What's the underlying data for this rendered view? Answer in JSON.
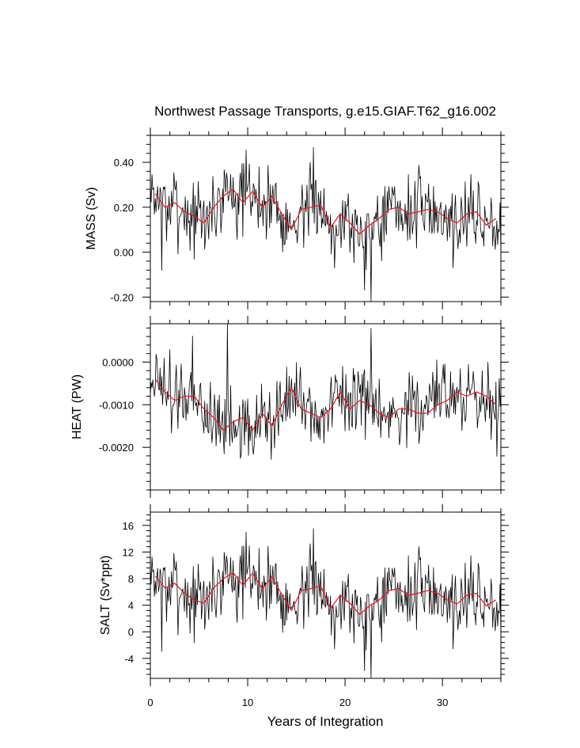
{
  "title": "Northwest Passage Transports, g.e15.GIAF.T62_g16.002",
  "xlabel": "Years of Integration",
  "colors": {
    "monthly": "#000000",
    "annual": "#e8141c",
    "frame": "#000000"
  },
  "chart_data": {
    "type": "line",
    "x_axis": {
      "label": "Years of Integration",
      "range": [
        0,
        36
      ],
      "ticks": [
        0,
        10,
        20,
        30
      ],
      "tick_labels": [
        "0",
        "10",
        "20",
        "30"
      ]
    },
    "panels": [
      {
        "id": "mass",
        "ylabel": "MASS (Sv)",
        "ylim": [
          -0.22,
          0.52
        ],
        "ticks": [
          -0.2,
          0.0,
          0.2,
          0.4
        ],
        "tick_labels": [
          "-0.20",
          "0.00",
          "0.20",
          "0.40"
        ],
        "series": [
          {
            "name": "monthly",
            "color": "#000000",
            "noise_seed": 7
          },
          {
            "name": "annual",
            "color": "#e8141c",
            "x": [
              0.5,
              1.5,
              2.5,
              3.5,
              4.5,
              5.5,
              6.5,
              7.5,
              8.5,
              9.5,
              10.5,
              11.5,
              12.5,
              13.5,
              14.5,
              15.5,
              16.5,
              17.5,
              18.5,
              19.5,
              20.5,
              21.5,
              22.5,
              23.5,
              24.5,
              25.5,
              26.5,
              27.5,
              28.5,
              29.5,
              30.5,
              31.5,
              32.5,
              33.5,
              34.5,
              35.5
            ],
            "y": [
              0.26,
              0.2,
              0.22,
              0.18,
              0.16,
              0.13,
              0.2,
              0.25,
              0.28,
              0.22,
              0.27,
              0.2,
              0.25,
              0.17,
              0.1,
              0.19,
              0.2,
              0.21,
              0.11,
              0.17,
              0.13,
              0.08,
              0.12,
              0.15,
              0.19,
              0.2,
              0.17,
              0.18,
              0.19,
              0.18,
              0.15,
              0.13,
              0.17,
              0.18,
              0.12,
              0.15
            ]
          }
        ]
      },
      {
        "id": "heat",
        "ylabel": "HEAT (PW)",
        "ylim": [
          -0.003,
          0.0009
        ],
        "ticks": [
          -0.002,
          -0.001,
          0.0
        ],
        "tick_labels": [
          "-0.0020",
          "-0.0010",
          "0.0000"
        ],
        "series": [
          {
            "name": "monthly",
            "color": "#000000",
            "noise_seed": 19
          },
          {
            "name": "annual",
            "color": "#e8141c",
            "x": [
              0.5,
              1.5,
              2.5,
              3.5,
              4.5,
              5.5,
              6.5,
              7.5,
              8.5,
              9.5,
              10.5,
              11.5,
              12.5,
              13.5,
              14.5,
              15.5,
              16.5,
              17.5,
              18.5,
              19.5,
              20.5,
              21.5,
              22.5,
              23.5,
              24.5,
              25.5,
              26.5,
              27.5,
              28.5,
              29.5,
              30.5,
              31.5,
              32.5,
              33.5,
              34.5,
              35.5
            ],
            "y": [
              -0.0004,
              -0.0007,
              -0.0009,
              -0.0008,
              -0.0008,
              -0.0011,
              -0.0013,
              -0.0016,
              -0.0014,
              -0.0013,
              -0.0016,
              -0.0012,
              -0.0015,
              -0.001,
              -0.0006,
              -0.0011,
              -0.0012,
              -0.0013,
              -0.0011,
              -0.0007,
              -0.0011,
              -0.0009,
              -0.001,
              -0.0012,
              -0.0013,
              -0.0011,
              -0.0011,
              -0.0012,
              -0.0012,
              -0.001,
              -0.0009,
              -0.0007,
              -0.0008,
              -0.0007,
              -0.0008,
              -0.001
            ]
          }
        ]
      },
      {
        "id": "salt",
        "ylabel": "SALT (Sv*ppt)",
        "ylim": [
          -7,
          18
        ],
        "ticks": [
          -4,
          0,
          4,
          8,
          12,
          16
        ],
        "tick_labels": [
          "-4",
          "0",
          "4",
          "8",
          "12",
          "16"
        ],
        "series": [
          {
            "name": "monthly",
            "color": "#000000",
            "noise_seed": 7
          },
          {
            "name": "annual",
            "color": "#e8141c",
            "x": [
              0.5,
              1.5,
              2.5,
              3.5,
              4.5,
              5.5,
              6.5,
              7.5,
              8.5,
              9.5,
              10.5,
              11.5,
              12.5,
              13.5,
              14.5,
              15.5,
              16.5,
              17.5,
              18.5,
              19.5,
              20.5,
              21.5,
              22.5,
              23.5,
              24.5,
              25.5,
              26.5,
              27.5,
              28.5,
              29.5,
              30.5,
              31.5,
              32.5,
              33.5,
              34.5,
              35.5
            ],
            "y": [
              8.4,
              6.6,
              7.3,
              5.8,
              4.8,
              4.3,
              6.6,
              8.0,
              8.9,
              7.0,
              8.8,
              6.5,
              8.3,
              5.6,
              3.2,
              6.2,
              6.5,
              6.9,
              3.5,
              5.5,
              4.3,
              2.6,
              3.9,
              4.8,
              6.2,
              6.5,
              5.5,
              5.8,
              6.2,
              5.8,
              4.8,
              4.2,
              5.5,
              5.8,
              3.9,
              4.8
            ]
          }
        ]
      }
    ]
  }
}
